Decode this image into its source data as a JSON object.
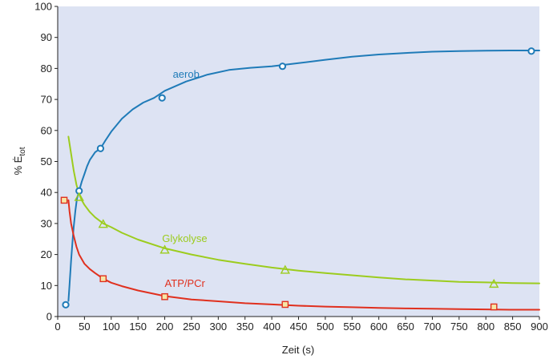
{
  "chart_data": {
    "type": "line",
    "xlabel": "Zeit (s)",
    "ylabel": "% Ė",
    "ylabel_sub": "tot",
    "xlim": [
      0,
      900
    ],
    "ylim": [
      0,
      100
    ],
    "xticks": [
      0,
      50,
      100,
      150,
      200,
      250,
      300,
      350,
      400,
      450,
      500,
      550,
      600,
      650,
      700,
      750,
      800,
      850,
      900
    ],
    "yticks": [
      0,
      10,
      20,
      30,
      40,
      50,
      60,
      70,
      80,
      90,
      100
    ],
    "grid": false,
    "colors": {
      "plot_background": "#dde3f3",
      "aerob": "#1f7bb8",
      "glykolyse": "#9ccc1e",
      "atp": "#e0301e",
      "marker_fill_square": "#f6e7a6"
    },
    "series": [
      {
        "name": "aerob",
        "marker": "circle",
        "color": "#1f7bb8",
        "x": [
          15,
          40,
          80,
          195,
          420,
          885
        ],
        "y": [
          3.8,
          40.5,
          54.2,
          70.5,
          80.7,
          85.6
        ],
        "curve_x": [
          20,
          22,
          25,
          28,
          30,
          33,
          36,
          40,
          45,
          50,
          55,
          60,
          70,
          80,
          90,
          100,
          120,
          140,
          160,
          180,
          200,
          240,
          280,
          320,
          360,
          400,
          450,
          500,
          550,
          600,
          650,
          700,
          750,
          800,
          850,
          900
        ],
        "curve_y": [
          5,
          10,
          18,
          25,
          29,
          34,
          38,
          40.5,
          43.5,
          46,
          48.5,
          50.5,
          53,
          54.2,
          57,
          59.6,
          63.8,
          66.8,
          69,
          70.5,
          72.8,
          75.8,
          78,
          79.5,
          80.2,
          80.7,
          81.7,
          82.8,
          83.8,
          84.5,
          85,
          85.4,
          85.6,
          85.7,
          85.8,
          85.8
        ]
      },
      {
        "name": "Glykolyse",
        "marker": "triangle",
        "color": "#9ccc1e",
        "x": [
          40,
          85,
          200,
          425,
          815
        ],
        "y": [
          38.5,
          29.8,
          21.5,
          15,
          10.5
        ],
        "curve_x": [
          20,
          25,
          30,
          35,
          40,
          45,
          50,
          60,
          70,
          85,
          100,
          120,
          150,
          200,
          250,
          300,
          350,
          400,
          450,
          500,
          550,
          600,
          650,
          700,
          750,
          800,
          850,
          900
        ],
        "curve_y": [
          58,
          52.5,
          47,
          42.5,
          39.5,
          37.5,
          36,
          33.7,
          32,
          30,
          28.8,
          27,
          24.8,
          22,
          20,
          18.3,
          17,
          15.8,
          14.8,
          14,
          13.3,
          12.6,
          12,
          11.6,
          11.2,
          11,
          10.8,
          10.7
        ]
      },
      {
        "name": "ATP/PCr",
        "marker": "square",
        "color": "#e0301e",
        "x": [
          12,
          85,
          200,
          425,
          815
        ],
        "y": [
          37.5,
          12.2,
          6.4,
          3.9,
          3.1
        ],
        "curve_x": [
          20,
          22,
          25,
          30,
          35,
          40,
          50,
          60,
          70,
          85,
          100,
          120,
          150,
          200,
          250,
          300,
          350,
          400,
          450,
          500,
          550,
          600,
          650,
          700,
          750,
          800,
          850,
          900
        ],
        "curve_y": [
          37.5,
          34,
          30,
          26,
          22.5,
          20,
          17,
          15.3,
          14,
          12.2,
          10.9,
          9.8,
          8.4,
          6.6,
          5.5,
          4.9,
          4.3,
          3.9,
          3.5,
          3.2,
          3,
          2.8,
          2.6,
          2.5,
          2.4,
          2.3,
          2.2,
          2.2
        ]
      }
    ],
    "annotations": [
      {
        "text": "aerob",
        "x": 215,
        "y": 77,
        "series": "aerob"
      },
      {
        "text": "Glykolyse",
        "x": 195,
        "y": 24,
        "series": "Glykolyse"
      },
      {
        "text": "ATP/PCr",
        "x": 200,
        "y": 9.5,
        "series": "ATP/PCr"
      }
    ]
  }
}
